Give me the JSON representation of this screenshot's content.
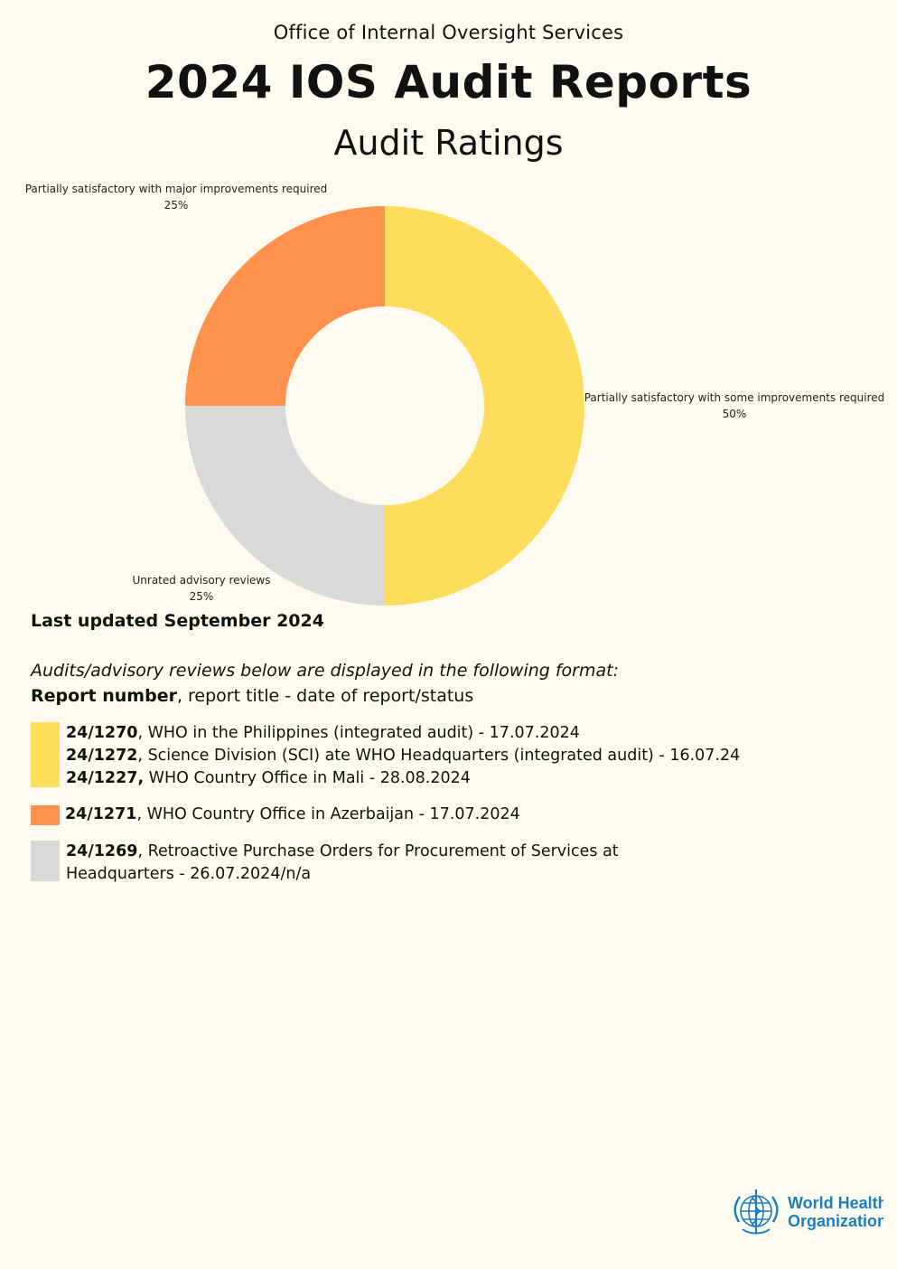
{
  "header": {
    "org": "Office of Internal Oversight Services",
    "title": "2024 IOS Audit Reports",
    "subtitle": "Audit Ratings"
  },
  "chart_data": {
    "type": "pie",
    "donut": true,
    "slices": [
      {
        "label": "Partially satisfactory with some improvements required",
        "value": 50,
        "pct_label": "50%",
        "color": "#ffdd5c"
      },
      {
        "label": "Unrated advisory reviews",
        "value": 25,
        "pct_label": "25%",
        "color": "#d9d9d9"
      },
      {
        "label": "Partially satisfactory with major improvements required",
        "value": 25,
        "pct_label": "25%",
        "color": "#ff914d"
      }
    ]
  },
  "updated": "Last updated September 2024",
  "format": {
    "note": "Audits/advisory reviews below are displayed in the following format:",
    "bold": "Report number",
    "rest": ", report title - date of report/status"
  },
  "groups": [
    {
      "color": "#ffdd5c",
      "entries": [
        {
          "number": "24/1270",
          "text": ", WHO in the Philippines (integrated audit) - 17.07.2024"
        },
        {
          "number": "24/1272",
          "text": ", Science Division (SCI) ate WHO Headquarters (integrated audit) - 16.07.24"
        },
        {
          "number": "24/1227,",
          "text": " WHO Country Office in Mali - 28.08.2024"
        }
      ]
    },
    {
      "color": "#ff914d",
      "entries": [
        {
          "number": "24/1271",
          "text": ", WHO Country Office in Azerbaijan - 17.07.2024"
        }
      ]
    },
    {
      "color": "#d9d9d9",
      "entries": [
        {
          "number": "24/1269",
          "text": ", Retroactive Purchase Orders for Procurement of Services at"
        },
        {
          "number": "",
          "text": "Headquarters - 26.07.2024/n/a"
        }
      ]
    }
  ],
  "logo": {
    "line1": "World Health",
    "line2": "Organization",
    "icon": "who-emblem-icon"
  }
}
